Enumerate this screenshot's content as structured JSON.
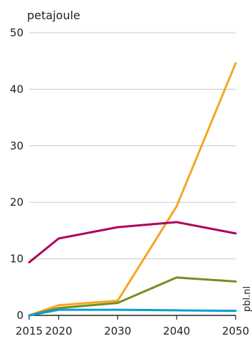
{
  "chart_data": {
    "type": "line",
    "ylabel": "petajoule",
    "x": [
      2015,
      2020,
      2030,
      2040,
      2050
    ],
    "x_ticks": [
      "2015",
      "2020",
      "2030",
      "2040",
      "2050"
    ],
    "y_ticks": [
      "0",
      "10",
      "20",
      "30",
      "40",
      "50"
    ],
    "ylim": [
      0,
      50
    ],
    "grid": "horizontal",
    "legend": "none",
    "source": "pbl.nl",
    "series": [
      {
        "color": "#f5a623",
        "values": [
          0,
          1.8,
          2.6,
          19.3,
          44.6
        ]
      },
      {
        "color": "#b0005e",
        "values": [
          9.4,
          13.6,
          15.6,
          16.5,
          14.5
        ]
      },
      {
        "color": "#7a8b1f",
        "values": [
          0,
          1.3,
          2.2,
          6.7,
          6.0
        ]
      },
      {
        "color": "#00a0d8",
        "values": [
          0,
          1.0,
          1.0,
          0.9,
          0.8
        ]
      }
    ]
  }
}
